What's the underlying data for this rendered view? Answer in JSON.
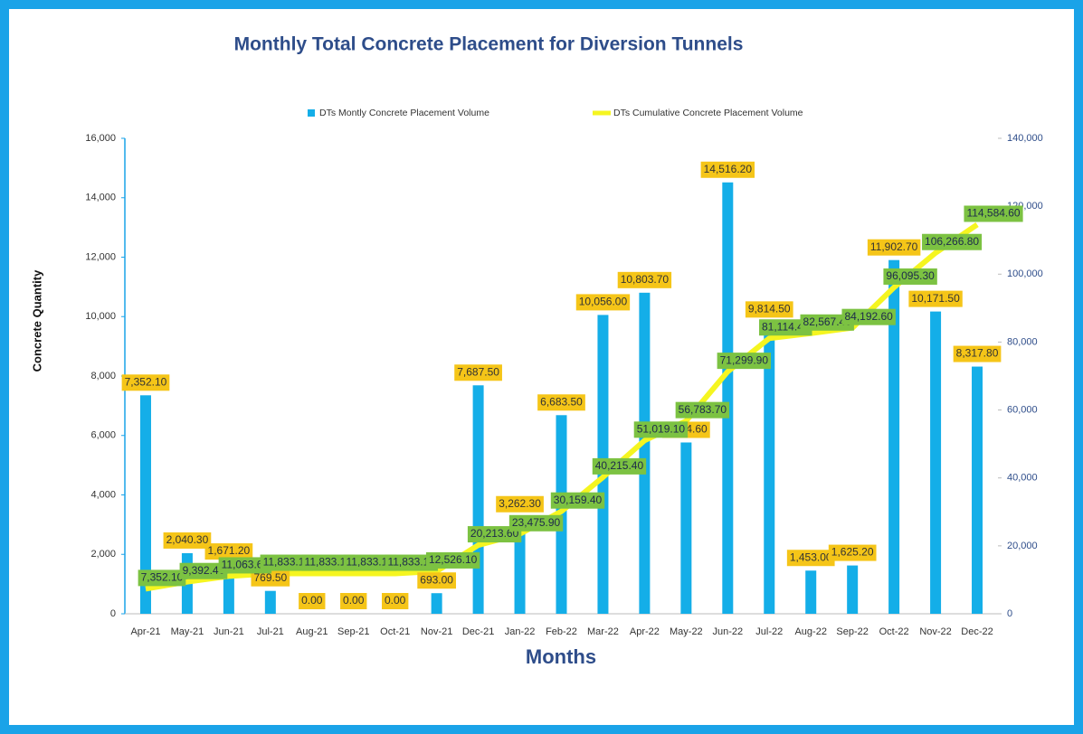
{
  "chart_data": {
    "type": "combo",
    "title": "Monthly Total Concrete Placement  for Diversion Tunnels",
    "xlabel": "Months",
    "ylabel": "Concrete Quantity",
    "categories": [
      "Apr-21",
      "May-21",
      "Jun-21",
      "Jul-21",
      "Aug-21",
      "Sep-21",
      "Oct-21",
      "Nov-21",
      "Dec-21",
      "Jan-22",
      "Feb-22",
      "Mar-22",
      "Apr-22",
      "May-22",
      "Jun-22",
      "Jul-22",
      "Aug-22",
      "Sep-22",
      "Oct-22",
      "Nov-22",
      "Dec-22"
    ],
    "series": [
      {
        "name": "DTs Montly Concrete Placement Volume",
        "type": "bar",
        "color": "#14aee8",
        "values": [
          7352.1,
          2040.3,
          1671.2,
          769.5,
          0,
          0,
          0,
          693,
          7687.5,
          3262.3,
          6683.5,
          10056,
          10803.7,
          5764.6,
          14516.2,
          9814.5,
          1453,
          1625.2,
          11902.7,
          10171.5,
          8317.8
        ],
        "value_labels": [
          "7,352.10",
          "2,040.30",
          "1,671.20",
          "769.50",
          "0.00",
          "0.00",
          "0.00",
          "693.00",
          "7,687.50",
          "3,262.30",
          "6,683.50",
          "10,056.00",
          "10,803.70",
          "5,764.60",
          "14,516.20",
          "9,814.50",
          "1,453.00",
          "1,625.20",
          "11,902.70",
          "10,171.50",
          "8,317.80"
        ]
      },
      {
        "name": "DTs Cumulative Concrete Placement Volume",
        "type": "line",
        "axis": "y2",
        "color": "#f5f520",
        "values": [
          7352.1,
          9392.4,
          11063.6,
          11833.1,
          11833.1,
          11833.1,
          11833.1,
          12526.1,
          20213.6,
          23475.9,
          30159.4,
          40215.4,
          51019.1,
          56783.7,
          71299.9,
          81114.4,
          82567.4,
          84192.6,
          96095.3,
          106266.8,
          114584.6
        ],
        "value_labels": [
          "7,352.10",
          "9,392.40",
          "11,063.60",
          "11,833.10",
          "11,833.10",
          "11,833.10",
          "11,833.10",
          "12,526.10",
          "20,213.60",
          "23,475.90",
          "30,159.40",
          "40,215.40",
          "51,019.10",
          "56,783.70",
          "71,299.90",
          "81,114.40",
          "82,567.40",
          "84,192.60",
          "96,095.30",
          "106,266.80",
          "114,584.60"
        ]
      }
    ],
    "ylim": [
      0,
      16000
    ],
    "yticks": [
      0,
      {
        "value": 2000,
        "label": "2,000"
      },
      {
        "value": 4000,
        "label": "4,000"
      },
      {
        "value": 6000,
        "label": "6,000"
      },
      {
        "value": 8000,
        "label": "8,000"
      },
      {
        "value": 10000,
        "label": "10,000"
      },
      {
        "value": 12000,
        "label": "12,000"
      },
      {
        "value": 14000,
        "label": "14,000"
      },
      {
        "value": 16000,
        "label": "16,000"
      }
    ],
    "y2lim": [
      0,
      140000
    ],
    "y2ticks": [
      0,
      {
        "value": 20000,
        "label": "20,000"
      },
      {
        "value": 40000,
        "label": "40,000"
      },
      {
        "value": 60000,
        "label": "60,000"
      },
      {
        "value": 80000,
        "label": "80,000"
      },
      {
        "value": 100000,
        "label": "100,000"
      },
      {
        "value": 120000,
        "label": "120,000"
      },
      {
        "value": 140000,
        "label": "140,000"
      }
    ],
    "legend": "top"
  }
}
